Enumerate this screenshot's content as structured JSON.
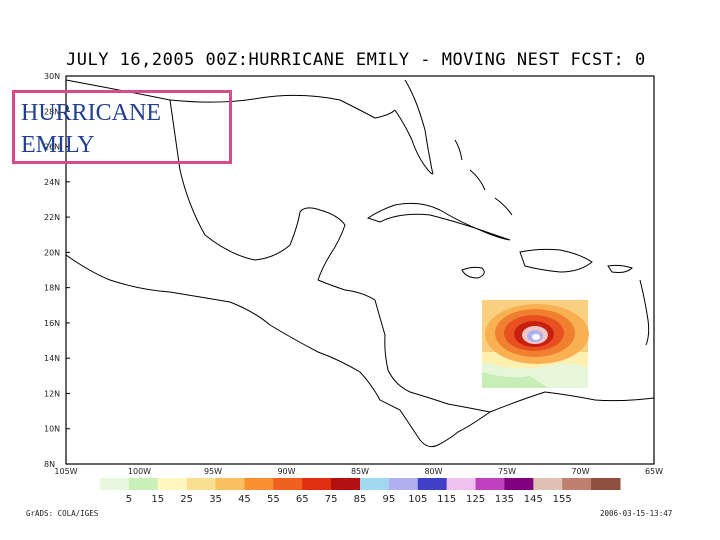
{
  "map_title": "JULY 16,2005 00Z:HURRICANE EMILY - MOVING NEST FCST: 0",
  "overlay_label": {
    "line1": "HURRICANE",
    "line2": "EMILY",
    "border_color": "#d94a8a",
    "text_color": "#1f3f8f"
  },
  "lat_ticks": [
    "30N",
    "28N",
    "26N",
    "24N",
    "22N",
    "20N",
    "18N",
    "16N",
    "14N",
    "12N",
    "10N",
    "8N"
  ],
  "lon_ticks": [
    "105W",
    "100W",
    "95W",
    "90W",
    "85W",
    "80W",
    "75W",
    "70W",
    "65W"
  ],
  "colorbar": {
    "labels": [
      "5",
      "15",
      "25",
      "35",
      "45",
      "55",
      "65",
      "75",
      "85",
      "95",
      "105",
      "115",
      "125",
      "135",
      "145",
      "155"
    ],
    "colors": [
      "#e8f8e0",
      "#c8f0b8",
      "#fff8c0",
      "#f8e090",
      "#f8c060",
      "#f89030",
      "#f06020",
      "#e03010",
      "#b01010",
      "#a0d8f0",
      "#b0b0f0",
      "#4040c8",
      "#f0c0f0",
      "#c040c0",
      "#800080",
      "#e0c0b0",
      "#c08070",
      "#905040"
    ]
  },
  "footer_left": "GrADS: COLA/IGES",
  "footer_right": "2006-03-15-13:47",
  "coastline_color": "#000000"
}
